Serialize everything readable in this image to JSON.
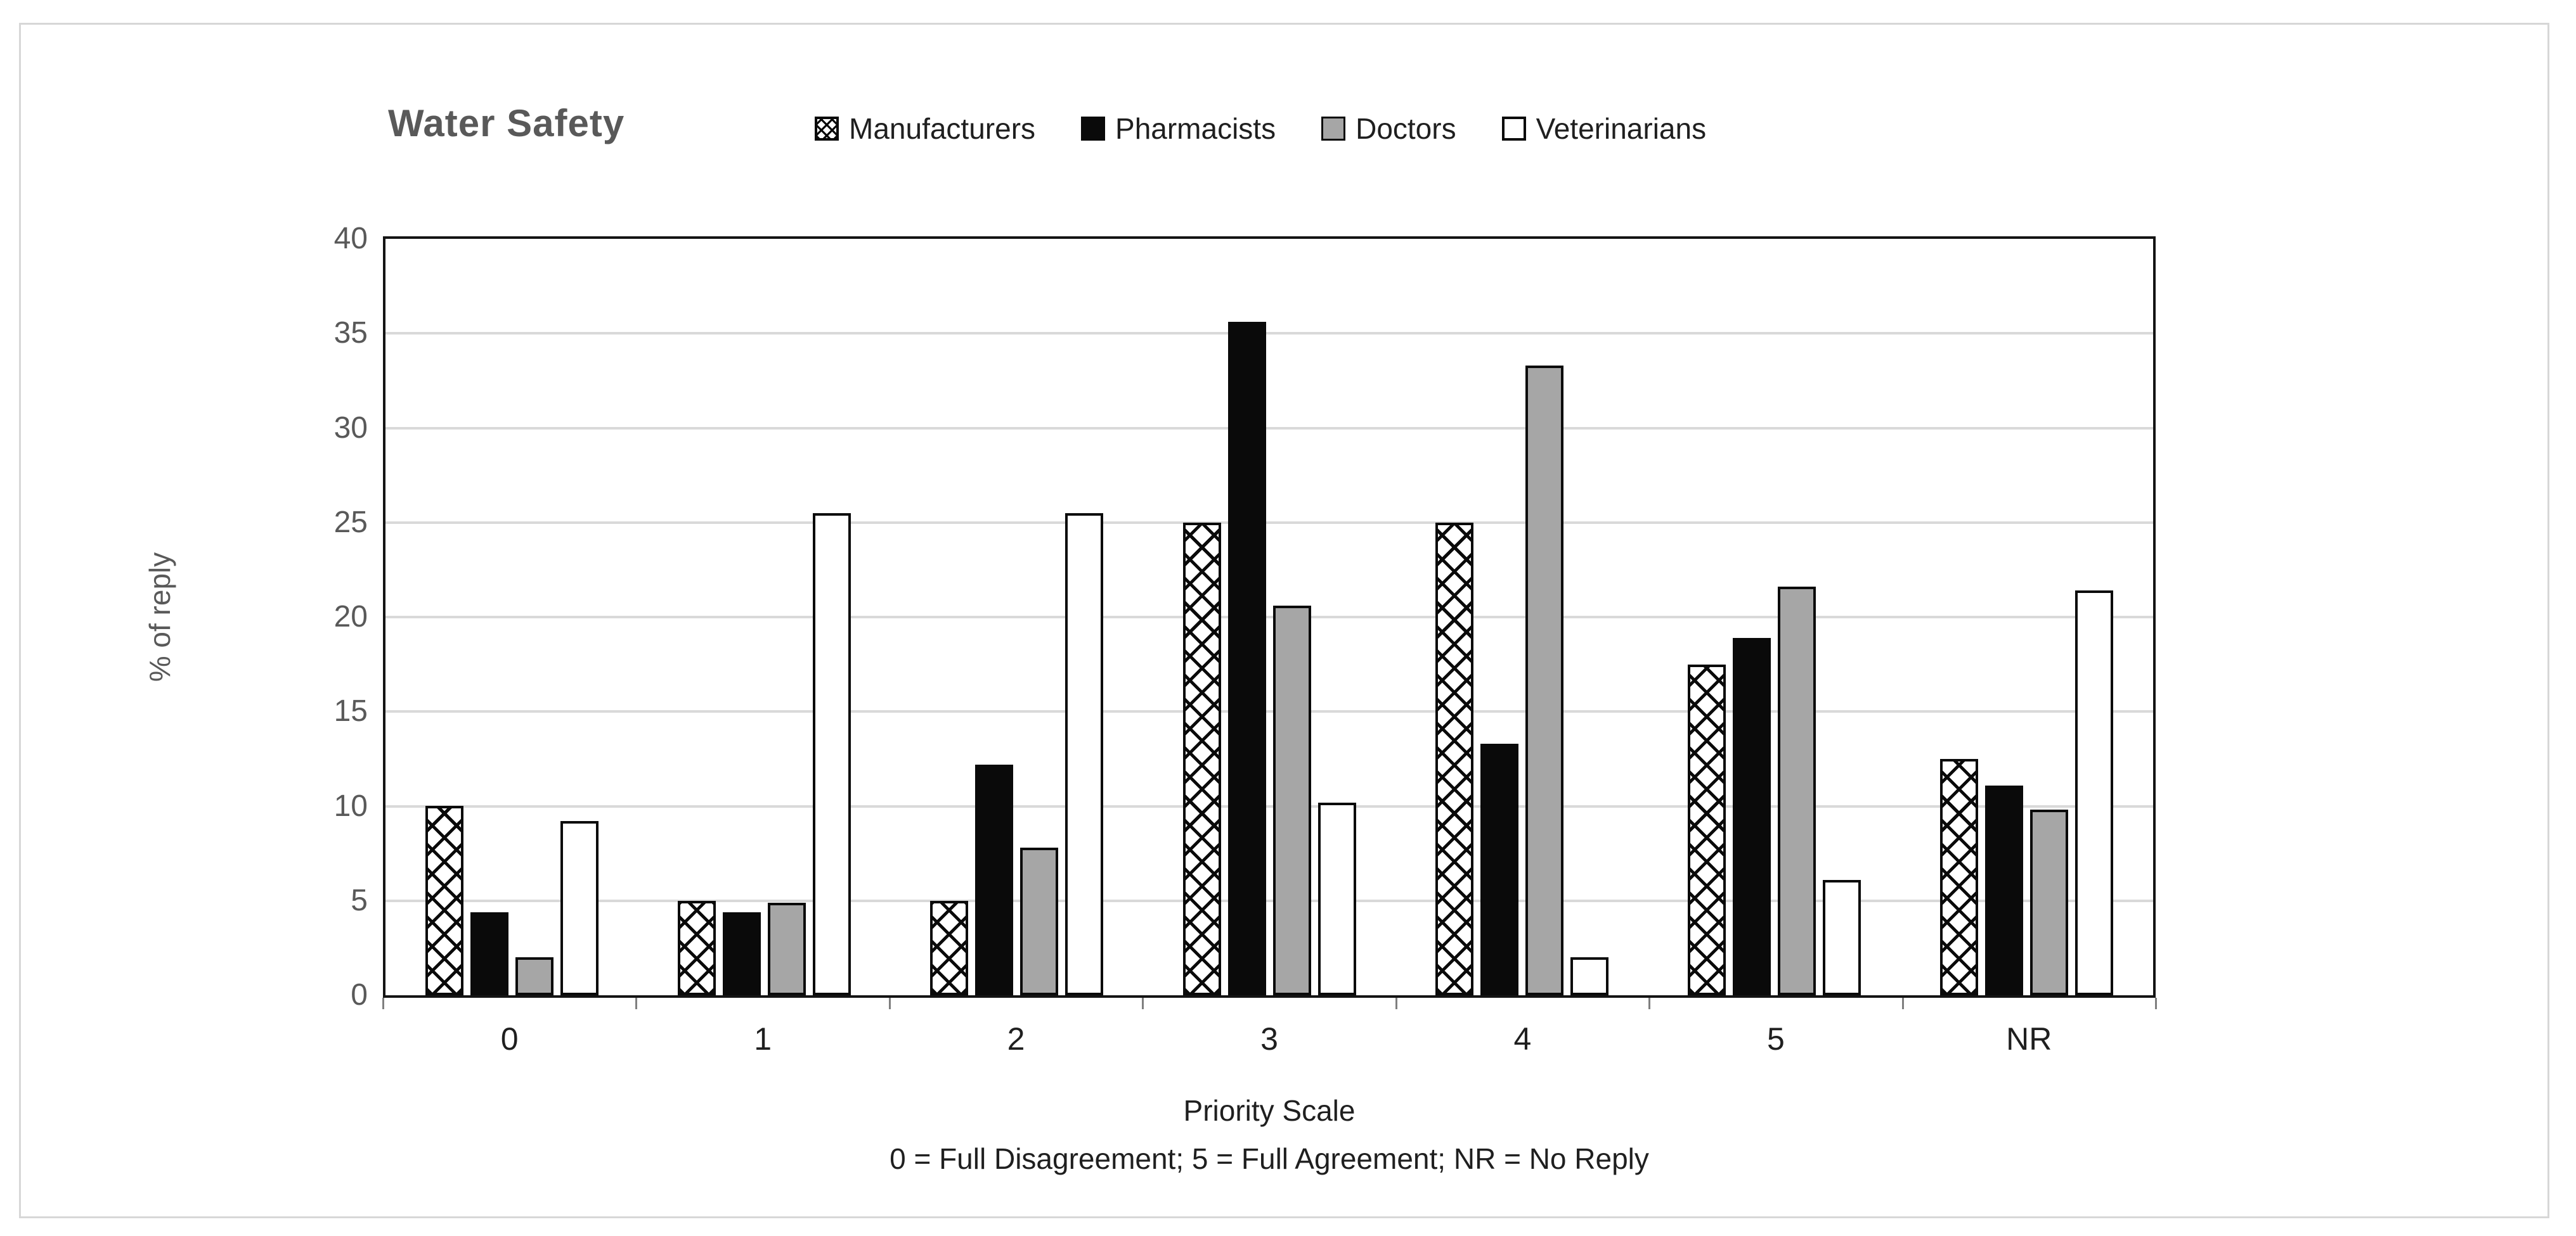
{
  "figure": {
    "title": "Water Safety"
  },
  "axes": {
    "y_title": "% of reply",
    "x_title": "Priority Scale",
    "x_note": "0 = Full Disagreement; 5 = Full Agreement; NR = No Reply"
  },
  "colors": {
    "title_text": "#595959",
    "axis_text": "#595959",
    "label_text": "#1f1f1f",
    "gridline": "#d9d9d9",
    "plot_border": "#141414",
    "outer_border": "#d7d7d7",
    "bar_border": "#0a0a0a",
    "pharmacists_fill": "#0a0a0a",
    "doctors_fill": "#a6a6a6",
    "veterinarians_fill": "#ffffff",
    "manufacturers_fill": "hatch-pattern-black-on-white"
  },
  "chart_data": {
    "type": "bar",
    "title": "Water Safety",
    "categories": [
      "0",
      "1",
      "2",
      "3",
      "4",
      "5",
      "NR"
    ],
    "series": [
      {
        "name": "Manufacturers",
        "fill": "hatch",
        "values": [
          10,
          5,
          5,
          25,
          25,
          17.5,
          12.5
        ]
      },
      {
        "name": "Pharmacists",
        "fill": "black",
        "values": [
          4.4,
          4.4,
          12.2,
          35.6,
          13.3,
          18.9,
          11.1
        ]
      },
      {
        "name": "Doctors",
        "fill": "gray",
        "values": [
          2,
          4.9,
          7.8,
          20.6,
          33.3,
          21.6,
          9.8
        ]
      },
      {
        "name": "Veterinarians",
        "fill": "white",
        "values": [
          9.2,
          25.5,
          25.5,
          10.2,
          2,
          6.1,
          21.4
        ]
      }
    ],
    "xlabel": "Priority Scale",
    "ylabel": "% of reply",
    "x_note": "0 = Full Disagreement; 5 = Full Agreement; NR = No Reply",
    "ylim": [
      0,
      40
    ],
    "yticks": [
      0,
      5,
      10,
      15,
      20,
      25,
      30,
      35,
      40
    ],
    "grid": true,
    "legend_position": "top"
  }
}
